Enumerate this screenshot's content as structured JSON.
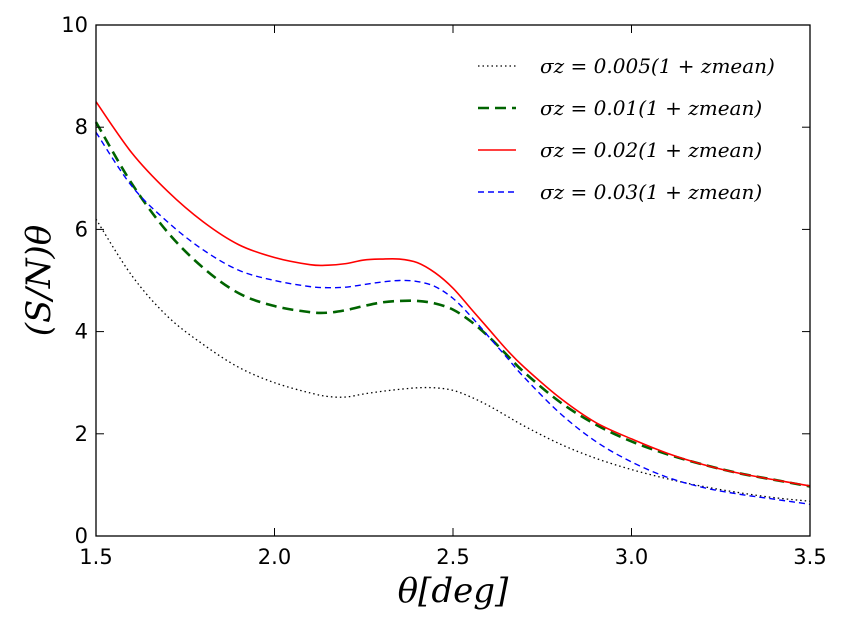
{
  "chart_data": {
    "type": "line",
    "title": "",
    "xlabel": "θ[deg]",
    "ylabel": "(S/N)θ",
    "xlim": [
      1.5,
      3.5
    ],
    "ylim": [
      0,
      10
    ],
    "xticks": [
      "1.5",
      "2.0",
      "2.5",
      "3.0",
      "3.5"
    ],
    "yticks": [
      "0",
      "2",
      "4",
      "6",
      "8",
      "10"
    ],
    "grid": false,
    "legend_position": "top-right",
    "x": [
      1.5,
      1.6,
      1.7,
      1.8,
      1.9,
      2.0,
      2.1,
      2.15,
      2.2,
      2.25,
      2.3,
      2.35,
      2.4,
      2.45,
      2.5,
      2.55,
      2.6,
      2.65,
      2.7,
      2.8,
      2.9,
      3.0,
      3.1,
      3.2,
      3.3,
      3.4,
      3.5
    ],
    "series": [
      {
        "name": "σz = 0.005(1 + zmean)",
        "legend": "σz = 0.005(1 + zmean)",
        "color": "#000000",
        "dash": "dotted",
        "values": [
          6.2,
          5.1,
          4.3,
          3.75,
          3.3,
          3.0,
          2.8,
          2.73,
          2.72,
          2.78,
          2.83,
          2.87,
          2.9,
          2.9,
          2.85,
          2.72,
          2.55,
          2.35,
          2.15,
          1.8,
          1.52,
          1.3,
          1.12,
          0.97,
          0.85,
          0.75,
          0.68
        ]
      },
      {
        "name": "σz = 0.01(1 + zmean)",
        "legend": "σz = 0.01(1 + zmean)",
        "color": "#006400",
        "dash": "dashed",
        "values": [
          8.1,
          6.9,
          5.95,
          5.25,
          4.75,
          4.5,
          4.38,
          4.37,
          4.42,
          4.5,
          4.57,
          4.6,
          4.6,
          4.55,
          4.43,
          4.2,
          3.9,
          3.55,
          3.2,
          2.62,
          2.18,
          1.85,
          1.6,
          1.4,
          1.23,
          1.1,
          0.97
        ]
      },
      {
        "name": "σz = 0.02(1 + zmean)",
        "legend": "σz = 0.02(1 + zmean)",
        "color": "#ff0000",
        "dash": "solid",
        "values": [
          8.5,
          7.5,
          6.75,
          6.15,
          5.7,
          5.45,
          5.31,
          5.3,
          5.33,
          5.4,
          5.42,
          5.42,
          5.35,
          5.15,
          4.85,
          4.45,
          4.05,
          3.65,
          3.3,
          2.7,
          2.22,
          1.9,
          1.62,
          1.4,
          1.23,
          1.1,
          0.98
        ]
      },
      {
        "name": "σz = 0.03(1 + zmean)",
        "legend": "σz = 0.03(1 + zmean)",
        "color": "#0000ff",
        "dash": "dashed-short",
        "values": [
          7.9,
          6.85,
          6.15,
          5.6,
          5.2,
          5.0,
          4.88,
          4.86,
          4.87,
          4.92,
          4.97,
          5.0,
          4.98,
          4.88,
          4.65,
          4.3,
          3.9,
          3.5,
          3.1,
          2.4,
          1.85,
          1.45,
          1.15,
          0.95,
          0.82,
          0.72,
          0.62
        ]
      }
    ]
  }
}
